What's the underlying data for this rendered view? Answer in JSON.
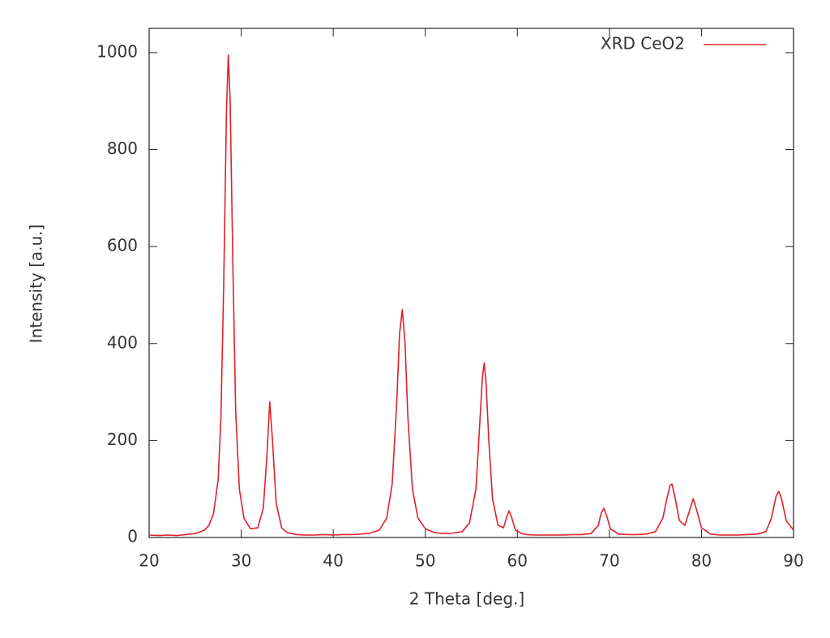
{
  "chart_data": {
    "type": "line",
    "xlabel": "2 Theta [deg.]",
    "ylabel": "Intensity [a.u.]",
    "x": [
      20,
      21,
      22,
      23,
      24,
      25,
      26,
      26.5,
      27,
      27.5,
      27.8,
      28.1,
      28.4,
      28.6,
      28.8,
      29.1,
      29.4,
      29.8,
      30.3,
      31,
      31.8,
      32.4,
      32.8,
      33.1,
      33.4,
      33.8,
      34.4,
      35,
      36,
      37,
      38,
      39,
      40,
      41,
      42,
      43,
      44,
      45,
      45.8,
      46.4,
      46.9,
      47.2,
      47.5,
      47.8,
      48.1,
      48.6,
      49.2,
      50,
      51,
      52,
      53,
      54,
      54.8,
      55.5,
      55.9,
      56.2,
      56.4,
      56.6,
      56.9,
      57.3,
      57.9,
      58.5,
      58.8,
      59.1,
      59.4,
      59.8,
      60.5,
      61,
      62,
      63,
      64,
      65,
      66,
      67,
      68,
      68.8,
      69.1,
      69.4,
      69.7,
      70.1,
      71,
      72,
      73,
      74,
      75,
      75.8,
      76.3,
      76.6,
      76.8,
      77.1,
      77.6,
      78.2,
      78.7,
      79.1,
      79.5,
      80,
      81,
      82,
      83,
      84,
      85,
      86,
      87,
      87.6,
      88.1,
      88.4,
      88.7,
      89.2,
      90
    ],
    "series": [
      {
        "name": "XRD CeO2",
        "color": "#e0202a",
        "values": [
          5,
          4,
          5,
          4,
          6,
          8,
          15,
          25,
          50,
          120,
          250,
          520,
          880,
          995,
          900,
          560,
          260,
          100,
          40,
          18,
          20,
          60,
          170,
          280,
          200,
          70,
          20,
          10,
          6,
          5,
          5,
          6,
          5,
          6,
          6,
          7,
          9,
          15,
          40,
          110,
          280,
          420,
          470,
          400,
          250,
          100,
          40,
          18,
          10,
          8,
          9,
          12,
          30,
          100,
          230,
          330,
          360,
          320,
          200,
          80,
          25,
          20,
          40,
          55,
          40,
          15,
          8,
          6,
          5,
          5,
          5,
          5,
          6,
          6,
          8,
          25,
          50,
          60,
          45,
          18,
          7,
          6,
          6,
          7,
          12,
          40,
          85,
          108,
          110,
          85,
          35,
          25,
          55,
          80,
          55,
          20,
          7,
          5,
          5,
          5,
          6,
          7,
          12,
          40,
          85,
          95,
          80,
          35,
          15
        ]
      }
    ],
    "xlim": [
      20,
      90
    ],
    "xticks": [
      20,
      30,
      40,
      50,
      60,
      70,
      80,
      90
    ],
    "ylim": [
      0,
      1050
    ],
    "yticks": [
      0,
      200,
      400,
      600,
      800,
      1000
    ],
    "legend": "top-right"
  }
}
